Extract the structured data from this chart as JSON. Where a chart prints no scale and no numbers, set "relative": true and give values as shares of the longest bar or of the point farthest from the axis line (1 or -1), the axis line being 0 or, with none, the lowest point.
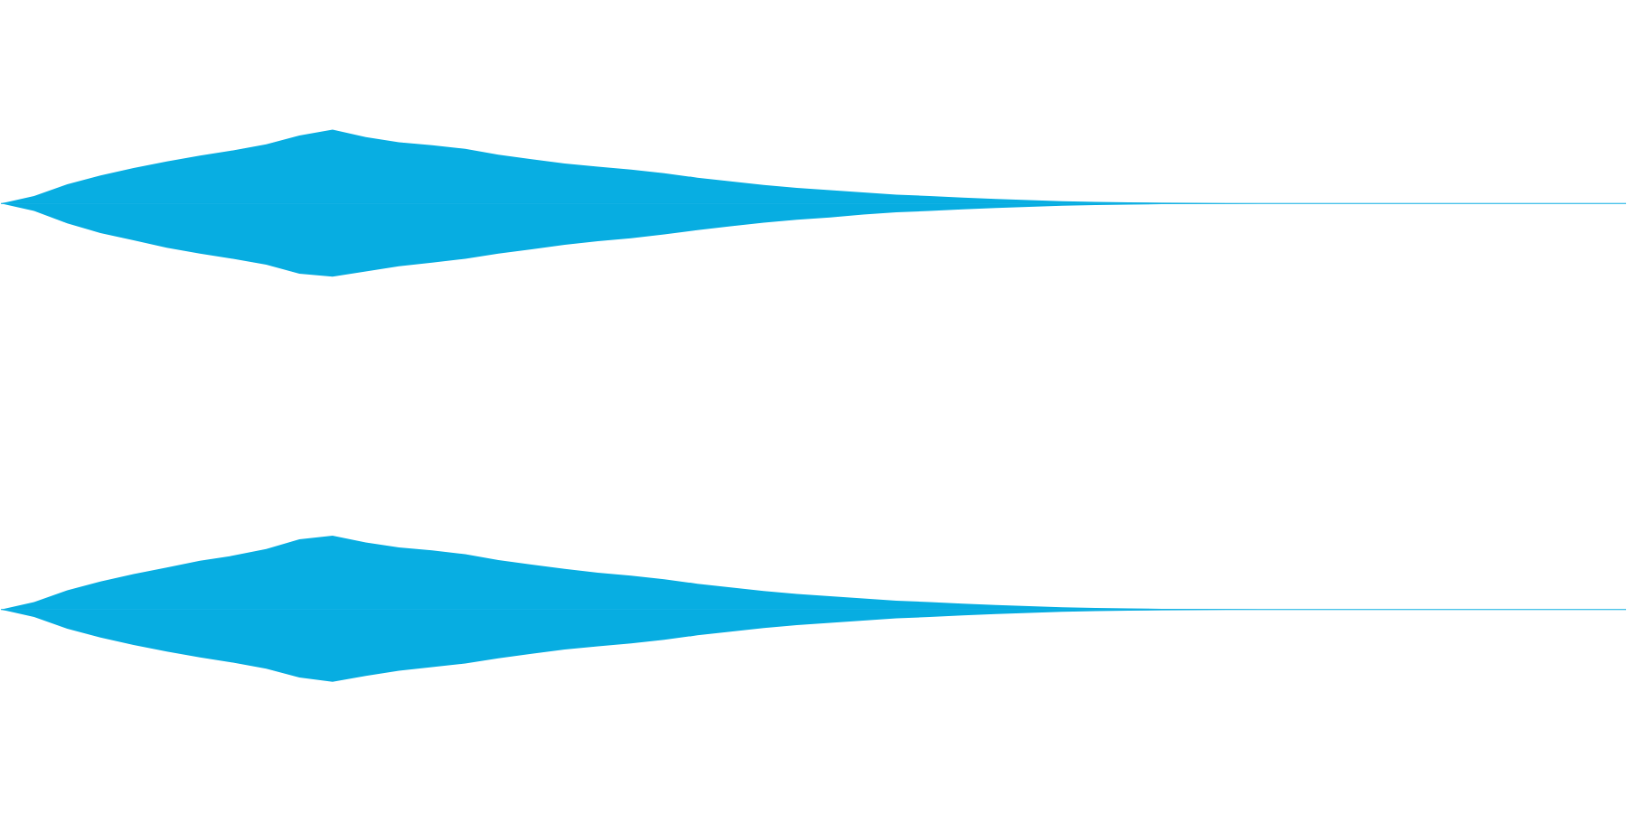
{
  "chart_data": [
    {
      "type": "area",
      "relative": true,
      "categories": [
        null,
        null,
        null,
        null,
        null,
        null,
        null,
        null,
        null,
        null,
        null,
        null,
        null,
        null,
        null,
        null,
        null,
        null,
        null,
        null,
        null,
        null,
        null,
        null,
        null,
        null,
        null,
        null,
        null,
        null,
        null,
        null,
        null,
        null,
        null,
        null,
        null,
        null,
        null,
        null,
        null,
        null,
        null,
        null,
        null,
        null,
        null,
        null,
        null,
        null
      ],
      "grid": false,
      "series": [
        {
          "color": "#08aee2",
          "values": [
            0,
            0.1,
            0.26,
            0.38,
            0.48,
            0.57,
            0.65,
            0.72,
            0.8,
            0.92,
            1,
            0.9,
            0.83,
            0.79,
            0.74,
            0.66,
            0.6,
            0.54,
            0.5,
            0.46,
            0.41,
            0.35,
            0.3,
            0.25,
            0.21,
            0.18,
            0.15,
            0.12,
            0.1,
            0.08,
            0.06,
            0.045,
            0.03,
            0.02,
            0.015,
            0.01,
            0.007,
            0.004,
            0,
            0,
            0,
            0,
            0,
            0,
            0,
            0,
            0,
            0,
            0,
            0
          ]
        },
        {
          "color": "#07ade1",
          "values": [
            0,
            -0.1,
            -0.27,
            -0.4,
            -0.5,
            -0.6,
            -0.68,
            -0.75,
            -0.83,
            -0.95,
            -0.99,
            -0.92,
            -0.85,
            -0.8,
            -0.75,
            -0.68,
            -0.62,
            -0.56,
            -0.51,
            -0.47,
            -0.42,
            -0.36,
            -0.31,
            -0.26,
            -0.22,
            -0.19,
            -0.15,
            -0.12,
            -0.1,
            -0.08,
            -0.06,
            -0.045,
            -0.03,
            -0.02,
            -0.015,
            -0.01,
            -0.007,
            -0.004,
            0,
            0,
            0,
            0,
            0,
            0,
            0,
            0,
            0,
            0,
            0,
            0
          ]
        }
      ]
    },
    {
      "type": "area",
      "relative": true,
      "categories": [
        null,
        null,
        null,
        null,
        null,
        null,
        null,
        null,
        null,
        null,
        null,
        null,
        null,
        null,
        null,
        null,
        null,
        null,
        null,
        null,
        null,
        null,
        null,
        null,
        null,
        null,
        null,
        null,
        null,
        null,
        null,
        null,
        null,
        null,
        null,
        null,
        null,
        null,
        null,
        null,
        null,
        null,
        null,
        null,
        null,
        null,
        null,
        null,
        null,
        null
      ],
      "grid": false,
      "series": [
        {
          "color": "#08aee2",
          "values": [
            0,
            0.1,
            0.26,
            0.38,
            0.48,
            0.57,
            0.66,
            0.73,
            0.82,
            0.95,
            1,
            0.91,
            0.84,
            0.8,
            0.75,
            0.67,
            0.61,
            0.55,
            0.5,
            0.46,
            0.41,
            0.35,
            0.3,
            0.25,
            0.21,
            0.18,
            0.15,
            0.12,
            0.1,
            0.08,
            0.06,
            0.045,
            0.03,
            0.02,
            0.015,
            0.01,
            0.007,
            0.004,
            0,
            0,
            0,
            0,
            0,
            0,
            0,
            0,
            0,
            0,
            0,
            0
          ]
        },
        {
          "color": "#07ade1",
          "values": [
            0,
            -0.1,
            -0.26,
            -0.38,
            -0.48,
            -0.57,
            -0.65,
            -0.72,
            -0.8,
            -0.92,
            -0.98,
            -0.9,
            -0.83,
            -0.78,
            -0.73,
            -0.66,
            -0.6,
            -0.54,
            -0.5,
            -0.46,
            -0.41,
            -0.35,
            -0.3,
            -0.25,
            -0.21,
            -0.18,
            -0.15,
            -0.12,
            -0.1,
            -0.08,
            -0.06,
            -0.045,
            -0.03,
            -0.02,
            -0.015,
            -0.01,
            -0.007,
            -0.004,
            0,
            0,
            0,
            0,
            0,
            0,
            0,
            0,
            0,
            0,
            0,
            0
          ]
        }
      ]
    }
  ]
}
